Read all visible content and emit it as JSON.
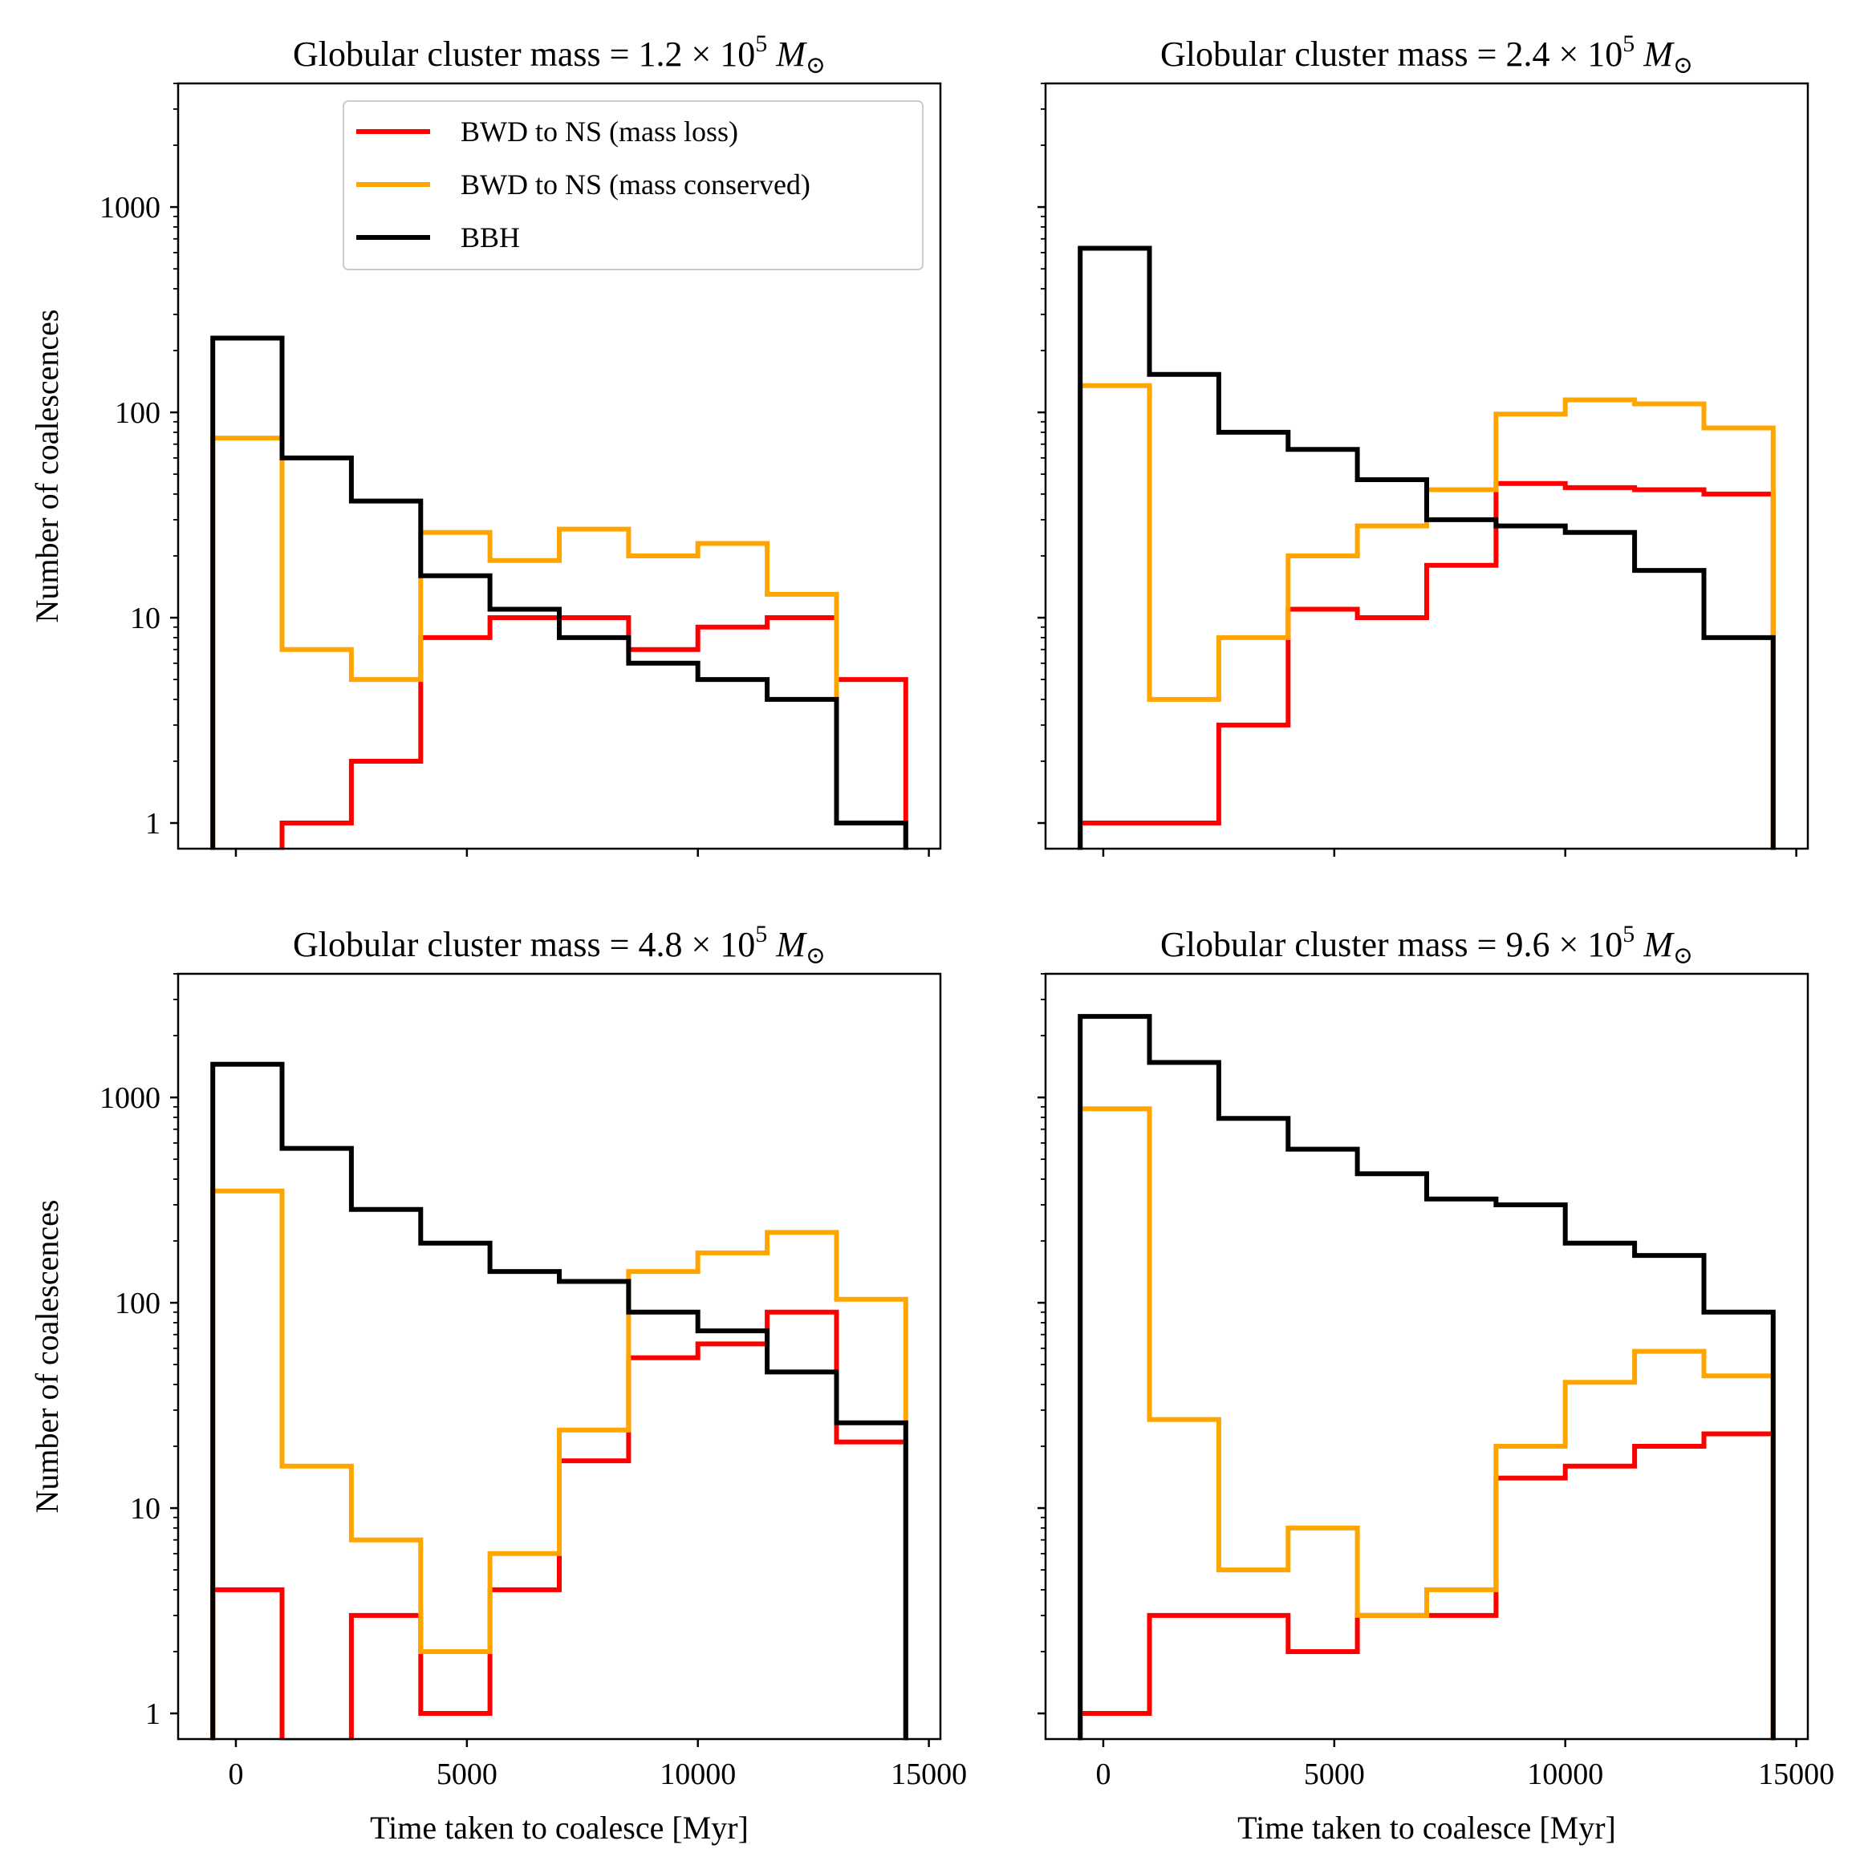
{
  "chart_data": {
    "type": "histogram",
    "layout": "2x2",
    "bin_edges": [
      -500,
      1000,
      2500,
      4000,
      5500,
      7000,
      8500,
      10000,
      11500,
      13000,
      14500
    ],
    "yscale": "log",
    "ylim": [
      0.75,
      4000
    ],
    "xlim": [
      -1250,
      15250
    ],
    "x_ticks": [
      0,
      5000,
      10000,
      15000
    ],
    "y_ticks": [
      1,
      10,
      100,
      1000
    ],
    "xlabel": "Time taken to coalesce [Myr]",
    "ylabel": "Number of coalescences",
    "legend": {
      "location": "upper-right",
      "entries": [
        {
          "label": "BWD to NS (mass loss)",
          "color": "#ff0000"
        },
        {
          "label": "BWD to NS (mass conserved)",
          "color": "#ffa500"
        },
        {
          "label": "BBH",
          "color": "#000000"
        }
      ]
    },
    "panels": [
      {
        "title_prefix": "Globular cluster mass = ",
        "mantissa": "1.2",
        "times": "×",
        "base": "10",
        "exponent": "5",
        "unit": "M",
        "unit_sub": "⊙",
        "series": [
          {
            "name": "BWD to NS (mass loss)",
            "color": "#ff0000",
            "values": [
              0,
              1,
              2,
              8,
              10,
              10,
              7,
              9,
              10,
              5
            ]
          },
          {
            "name": "BWD to NS (mass conserved)",
            "color": "#ffa500",
            "values": [
              75,
              7,
              5,
              26,
              19,
              27,
              20,
              23,
              13,
              1
            ]
          },
          {
            "name": "BBH",
            "color": "#000000",
            "values": [
              230,
              60,
              37,
              16,
              11,
              8,
              6,
              5,
              4,
              1
            ]
          }
        ]
      },
      {
        "title_prefix": "Globular cluster mass = ",
        "mantissa": "2.4",
        "times": "×",
        "base": "10",
        "exponent": "5",
        "unit": "M",
        "unit_sub": "⊙",
        "series": [
          {
            "name": "BWD to NS (mass loss)",
            "color": "#ff0000",
            "values": [
              1,
              1,
              3,
              11,
              10,
              18,
              45,
              43,
              42,
              40
            ]
          },
          {
            "name": "BWD to NS (mass conserved)",
            "color": "#ffa500",
            "values": [
              135,
              4,
              8,
              20,
              28,
              42,
              98,
              115,
              110,
              84
            ]
          },
          {
            "name": "BBH",
            "color": "#000000",
            "values": [
              630,
              153,
              80,
              66,
              47,
              30,
              28,
              26,
              17,
              8
            ]
          }
        ]
      },
      {
        "title_prefix": "Globular cluster mass = ",
        "mantissa": "4.8",
        "times": "×",
        "base": "10",
        "exponent": "5",
        "unit": "M",
        "unit_sub": "⊙",
        "series": [
          {
            "name": "BWD to NS (mass loss)",
            "color": "#ff0000",
            "values": [
              4,
              0,
              3,
              1,
              4,
              17,
              54,
              63,
              90,
              21
            ]
          },
          {
            "name": "BWD to NS (mass conserved)",
            "color": "#ffa500",
            "values": [
              350,
              16,
              7,
              2,
              6,
              24,
              142,
              175,
              220,
              104
            ]
          },
          {
            "name": "BBH",
            "color": "#000000",
            "values": [
              1450,
              565,
              285,
              195,
              142,
              127,
              90,
              73,
              46,
              26
            ]
          }
        ]
      },
      {
        "title_prefix": "Globular cluster mass = ",
        "mantissa": "9.6",
        "times": "×",
        "base": "10",
        "exponent": "5",
        "unit": "M",
        "unit_sub": "⊙",
        "series": [
          {
            "name": "BWD to NS (mass loss)",
            "color": "#ff0000",
            "values": [
              1,
              3,
              3,
              2,
              3,
              3,
              14,
              16,
              20,
              23
            ]
          },
          {
            "name": "BWD to NS (mass conserved)",
            "color": "#ffa500",
            "values": [
              880,
              27,
              5,
              8,
              3,
              4,
              20,
              41,
              58,
              44
            ]
          },
          {
            "name": "BBH",
            "color": "#000000",
            "values": [
              2480,
              1480,
              790,
              560,
              425,
              320,
              300,
              195,
              170,
              90
            ]
          }
        ]
      }
    ]
  }
}
